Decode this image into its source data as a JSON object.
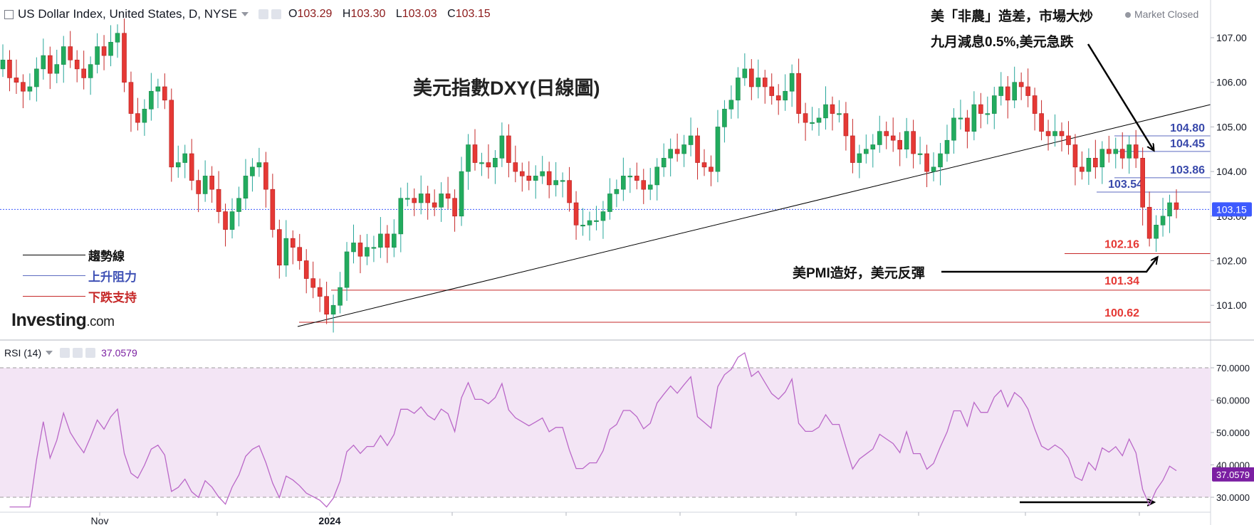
{
  "header": {
    "symbol": "US Dollar Index, United States, D, NYSE",
    "open_label": "O",
    "open": "103.29",
    "high_label": "H",
    "high": "103.30",
    "low_label": "L",
    "low": "103.03",
    "close_label": "C",
    "close": "103.15",
    "market_status": "Market Closed"
  },
  "annotations": {
    "title": "美元指數DXY(日線圖)",
    "nfp_line1": "美「非農」造差，市場大炒",
    "nfp_line2": "九月減息0.5%,美元急跌",
    "pmi": "美PMI造好，美元反彈"
  },
  "legend": {
    "trend": "趨勢線",
    "resistance": "上升阻力",
    "support": "下跌支持"
  },
  "logo": {
    "main": "Investing",
    "suffix": ".com"
  },
  "rsi": {
    "label": "RSI (14)",
    "value": "37.0579"
  },
  "colors": {
    "up": "#26a69a",
    "up_fill": "#22ab5e",
    "down": "#e53935",
    "resistance": "#5c6bc0",
    "support": "#c62828",
    "trend": "#000000",
    "rsi_line": "#ba68c8",
    "rsi_band": "#f3e5f5",
    "price_badge": "#3d5afe"
  },
  "chart_data": {
    "type": "candlestick",
    "y_ticks": [
      "107.00",
      "106.00",
      "105.00",
      "104.00",
      "103.00",
      "102.00",
      "101.00"
    ],
    "ylim": [
      100.2,
      107.7
    ],
    "x_ticks": [
      "Nov",
      "2024"
    ],
    "current_price": "103.15",
    "resistance_levels": [
      {
        "value": 104.8,
        "label": "104.80"
      },
      {
        "value": 104.45,
        "label": "104.45"
      },
      {
        "value": 103.86,
        "label": "103.86"
      },
      {
        "value": 103.54,
        "label": "103.54"
      }
    ],
    "support_levels": [
      {
        "value": 102.16,
        "label": "102.16"
      },
      {
        "value": 101.34,
        "label": "101.34"
      },
      {
        "value": 100.62,
        "label": "100.62"
      }
    ],
    "closes": [
      106.5,
      106.1,
      106.0,
      105.8,
      105.9,
      106.3,
      106.6,
      106.2,
      106.4,
      106.8,
      106.5,
      106.3,
      106.1,
      106.4,
      106.8,
      106.6,
      106.9,
      107.1,
      106.0,
      105.3,
      105.1,
      105.4,
      105.8,
      105.9,
      105.6,
      104.1,
      104.2,
      104.4,
      103.8,
      103.5,
      103.9,
      103.6,
      103.1,
      102.7,
      103.1,
      103.4,
      103.9,
      104.1,
      104.2,
      103.6,
      102.7,
      101.9,
      102.5,
      102.3,
      102.0,
      101.6,
      101.4,
      101.2,
      100.8,
      101.0,
      101.4,
      102.2,
      102.4,
      102.1,
      102.3,
      102.3,
      102.6,
      102.3,
      102.6,
      103.4,
      103.4,
      103.3,
      103.5,
      103.3,
      103.2,
      103.5,
      103.4,
      103.0,
      104.0,
      104.6,
      104.2,
      104.2,
      104.1,
      104.3,
      104.8,
      104.2,
      104.0,
      103.9,
      103.8,
      103.9,
      104.0,
      103.7,
      103.8,
      103.8,
      103.3,
      102.8,
      102.8,
      102.9,
      102.9,
      103.1,
      103.5,
      103.6,
      103.9,
      103.9,
      103.8,
      103.6,
      103.7,
      104.1,
      104.3,
      104.5,
      104.4,
      104.6,
      104.8,
      104.2,
      104.1,
      104.0,
      105.0,
      105.4,
      105.6,
      106.1,
      106.3,
      105.9,
      106.1,
      105.9,
      105.7,
      105.6,
      105.8,
      106.2,
      105.3,
      105.1,
      105.1,
      105.2,
      105.5,
      105.3,
      105.3,
      104.8,
      104.2,
      104.4,
      104.5,
      104.6,
      104.9,
      104.8,
      104.7,
      104.5,
      104.9,
      104.4,
      104.4,
      104.0,
      104.1,
      104.4,
      104.7,
      105.2,
      105.2,
      104.9,
      105.5,
      105.3,
      105.3,
      105.7,
      105.9,
      105.6,
      106.0,
      105.9,
      105.7,
      105.3,
      104.9,
      104.8,
      104.9,
      104.8,
      104.6,
      104.1,
      104.0,
      104.3,
      104.1,
      104.5,
      104.4,
      104.5,
      104.3,
      104.6,
      104.3,
      103.2,
      102.5,
      102.8,
      103.0,
      103.3,
      103.15
    ],
    "rsi_ticks": [
      "70.0000",
      "60.0000",
      "50.0000",
      "40.0000",
      "30.0000"
    ],
    "rsi_ylim": [
      26,
      76
    ],
    "rsi_overbought": 70,
    "rsi_oversold": 30,
    "rsi_current": "37.0579"
  }
}
